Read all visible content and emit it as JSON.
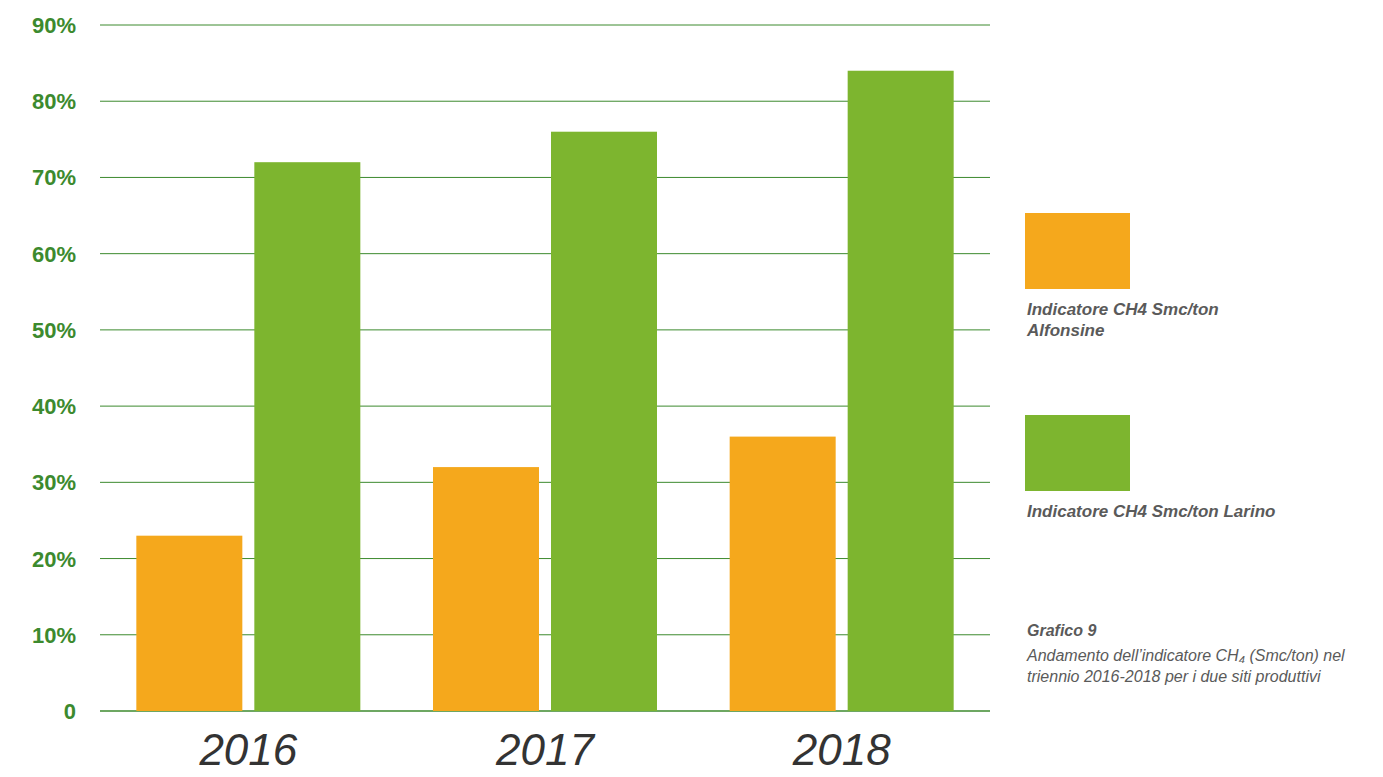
{
  "chart_data": {
    "type": "bar",
    "title": "Grafico 9",
    "subtitle": "Andamento dell’indicatore CH₄ (Smc/ton) nel triennio 2016-2018 per i due siti produttivi",
    "categories": [
      "2016",
      "2017",
      "2018"
    ],
    "series": [
      {
        "name": "Indicatore CH4 Smc/ton Alfonsine",
        "color": "#f5a81c",
        "values": [
          23,
          32,
          36
        ]
      },
      {
        "name": "Indicatore CH4 Smc/ton Larino",
        "color": "#7db52f",
        "values": [
          72,
          76,
          84
        ]
      }
    ],
    "ylim": [
      0,
      90
    ],
    "yticks": [
      0,
      {
        "value": 10,
        "label": "10%"
      },
      {
        "value": 20,
        "label": "20%"
      },
      {
        "value": 30,
        "label": "30%"
      },
      {
        "value": 40,
        "label": "40%"
      },
      {
        "value": 50,
        "label": "50%"
      },
      {
        "value": 60,
        "label": "60%"
      },
      {
        "value": 70,
        "label": "70%"
      },
      {
        "value": 80,
        "label": "80%"
      },
      {
        "value": 90,
        "label": "90%"
      }
    ],
    "grid": true,
    "legend": "right"
  }
}
